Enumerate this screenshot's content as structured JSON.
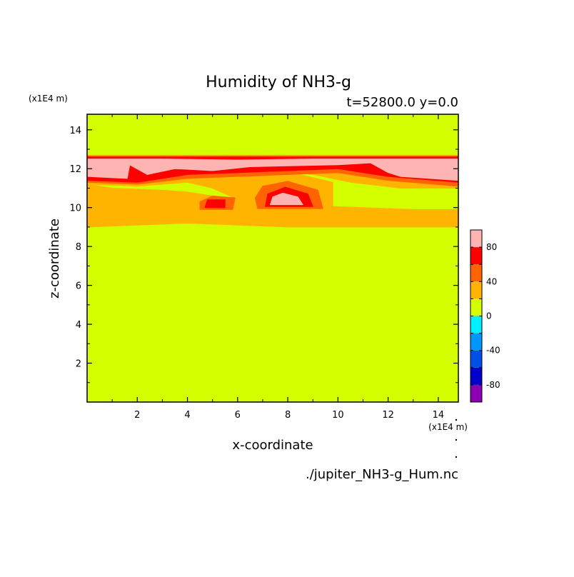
{
  "chart_data": {
    "type": "heatmap",
    "title": "Humidity of NH3-g",
    "subtitle": "t=52800.0 y=0.0",
    "xlabel": "x-coordinate",
    "ylabel": "z-coordinate",
    "x_unit": "(x1E4 m)",
    "y_unit": "(x1E4 m)",
    "source_file": "./jupiter_NH3-g_Hum.nc",
    "xlim": [
      0,
      14.8
    ],
    "ylim": [
      0,
      14.8
    ],
    "x_ticks": [
      2,
      4,
      6,
      8,
      10,
      12,
      14
    ],
    "y_ticks": [
      2,
      4,
      6,
      8,
      10,
      12,
      14
    ],
    "grid": false,
    "legend": "colorbar-right",
    "colorbar": {
      "levels": [
        -100,
        -80,
        -60,
        -40,
        -20,
        0,
        20,
        40,
        60,
        80,
        100
      ],
      "colors": [
        "#8c00b4",
        "#0000c8",
        "#0050e6",
        "#0096ff",
        "#00f0ff",
        "#d4ff00",
        "#ffb400",
        "#ff6400",
        "#ff0000",
        "#ffb4b4"
      ],
      "tick_labels": [
        "-80",
        "-40",
        "0",
        "40",
        "80"
      ],
      "tick_values": [
        -80,
        -40,
        0,
        40,
        80
      ]
    },
    "background_level": 10,
    "regions": [
      {
        "level": 30,
        "outline": [
          [
            0,
            9.0
          ],
          [
            2,
            9.1
          ],
          [
            4,
            9.2
          ],
          [
            6,
            9.1
          ],
          [
            8,
            9.0
          ],
          [
            10,
            9.0
          ],
          [
            12,
            9.0
          ],
          [
            14.8,
            9.0
          ],
          [
            14.8,
            9.9
          ],
          [
            13,
            9.9
          ],
          [
            11,
            10.0
          ],
          [
            9,
            10.1
          ],
          [
            7,
            10.2
          ],
          [
            6,
            10.4
          ],
          [
            5,
            10.6
          ],
          [
            4,
            10.8
          ],
          [
            3,
            10.9
          ],
          [
            1,
            11.0
          ],
          [
            0,
            11.2
          ]
        ]
      },
      {
        "level": 30,
        "outline": [
          [
            6.2,
            9.8
          ],
          [
            9.8,
            9.8
          ],
          [
            9.8,
            11.3
          ],
          [
            8.5,
            11.7
          ],
          [
            7,
            11.8
          ],
          [
            5.5,
            11.6
          ],
          [
            4,
            11.3
          ],
          [
            5,
            11.0
          ],
          [
            6.2,
            10.3
          ]
        ]
      },
      {
        "level": 30,
        "outline": [
          [
            10.5,
            11.3
          ],
          [
            12.5,
            11.0
          ],
          [
            14.8,
            11.0
          ],
          [
            14.8,
            12.7
          ],
          [
            0,
            12.7
          ],
          [
            0,
            11.2
          ],
          [
            2,
            11.1
          ],
          [
            4,
            11.3
          ],
          [
            7,
            11.9
          ],
          [
            9,
            11.7
          ]
        ]
      },
      {
        "level": 50,
        "outline": [
          [
            0,
            11.3
          ],
          [
            2,
            11.2
          ],
          [
            4,
            11.5
          ],
          [
            6,
            11.6
          ],
          [
            8,
            11.7
          ],
          [
            10,
            11.8
          ],
          [
            12,
            11.4
          ],
          [
            14.8,
            11.1
          ],
          [
            14.8,
            12.65
          ],
          [
            0,
            12.65
          ]
        ]
      },
      {
        "level": 50,
        "outline": [
          [
            6.8,
            9.95
          ],
          [
            9.4,
            9.95
          ],
          [
            9.2,
            10.9
          ],
          [
            8,
            11.35
          ],
          [
            7,
            11.1
          ],
          [
            6.7,
            10.5
          ]
        ]
      },
      {
        "level": 50,
        "outline": [
          [
            4.5,
            9.9
          ],
          [
            5.8,
            9.9
          ],
          [
            5.9,
            10.5
          ],
          [
            5,
            10.6
          ],
          [
            4.5,
            10.3
          ]
        ]
      },
      {
        "level": 70,
        "outline": [
          [
            0,
            11.4
          ],
          [
            2,
            11.3
          ],
          [
            4,
            11.7
          ],
          [
            6,
            11.8
          ],
          [
            8,
            11.9
          ],
          [
            10,
            12.0
          ],
          [
            12,
            11.6
          ],
          [
            14.8,
            11.3
          ],
          [
            14.8,
            12.6
          ],
          [
            0,
            12.6
          ]
        ]
      },
      {
        "level": 70,
        "outline": [
          [
            7.1,
            10.05
          ],
          [
            9.0,
            10.05
          ],
          [
            8.8,
            10.7
          ],
          [
            7.9,
            11.05
          ],
          [
            7.2,
            10.7
          ]
        ]
      },
      {
        "level": 70,
        "outline": [
          [
            4.7,
            10.0
          ],
          [
            5.5,
            10.0
          ],
          [
            5.5,
            10.4
          ],
          [
            4.8,
            10.4
          ]
        ]
      },
      {
        "level": 90,
        "outline": [
          [
            0,
            11.6
          ],
          [
            1.6,
            11.5
          ],
          [
            1.7,
            12.2
          ],
          [
            2.4,
            11.7
          ],
          [
            3.5,
            12.0
          ],
          [
            5,
            11.9
          ],
          [
            6.5,
            12.1
          ],
          [
            8,
            12.15
          ],
          [
            10,
            12.2
          ],
          [
            11.3,
            12.3
          ],
          [
            12,
            11.8
          ],
          [
            12.5,
            11.6
          ],
          [
            14.8,
            11.4
          ],
          [
            14.8,
            12.5
          ],
          [
            11,
            12.5
          ],
          [
            9,
            12.5
          ],
          [
            6,
            12.45
          ],
          [
            3,
            12.5
          ],
          [
            0,
            12.5
          ]
        ]
      },
      {
        "level": 90,
        "outline": [
          [
            7.3,
            10.15
          ],
          [
            8.6,
            10.15
          ],
          [
            8.4,
            10.55
          ],
          [
            7.8,
            10.75
          ],
          [
            7.4,
            10.55
          ]
        ]
      }
    ]
  }
}
